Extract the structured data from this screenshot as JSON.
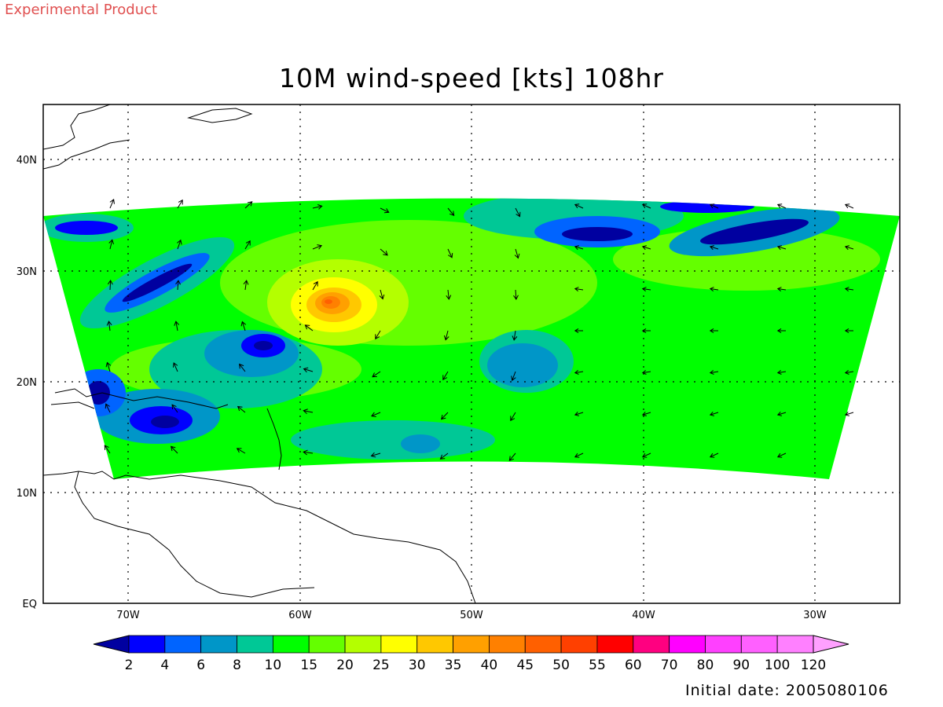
{
  "header": {
    "product_tag": "Experimental Product",
    "title": "10M wind-speed [kts] 108hr"
  },
  "footer": {
    "initial_date": "Initial date: 2005080106"
  },
  "map": {
    "lat_labels": [
      "40N",
      "30N",
      "20N",
      "10N",
      "EQ"
    ],
    "lon_labels": [
      "70W",
      "60W",
      "50W",
      "40W",
      "30W"
    ]
  },
  "colorbar": {
    "labels": [
      "2",
      "4",
      "6",
      "8",
      "10",
      "15",
      "20",
      "25",
      "30",
      "35",
      "40",
      "45",
      "50",
      "55",
      "60",
      "70",
      "80",
      "90",
      "100",
      "120"
    ],
    "colors": [
      "#0000a0",
      "#0000ff",
      "#0064ff",
      "#0096c8",
      "#00c896",
      "#00ff00",
      "#64ff00",
      "#b4ff00",
      "#ffff00",
      "#ffc800",
      "#ffa000",
      "#ff8000",
      "#ff6000",
      "#ff4000",
      "#ff0000",
      "#ff0080",
      "#ff00ff",
      "#ff40ff",
      "#ff60ff",
      "#ff80ff",
      "#ffa0ff"
    ]
  },
  "colors": {
    "map_background": "#ffffff",
    "base_field": "#00ff00",
    "coast": "#000000"
  },
  "icons": [
    "wind-vector-arrow"
  ]
}
